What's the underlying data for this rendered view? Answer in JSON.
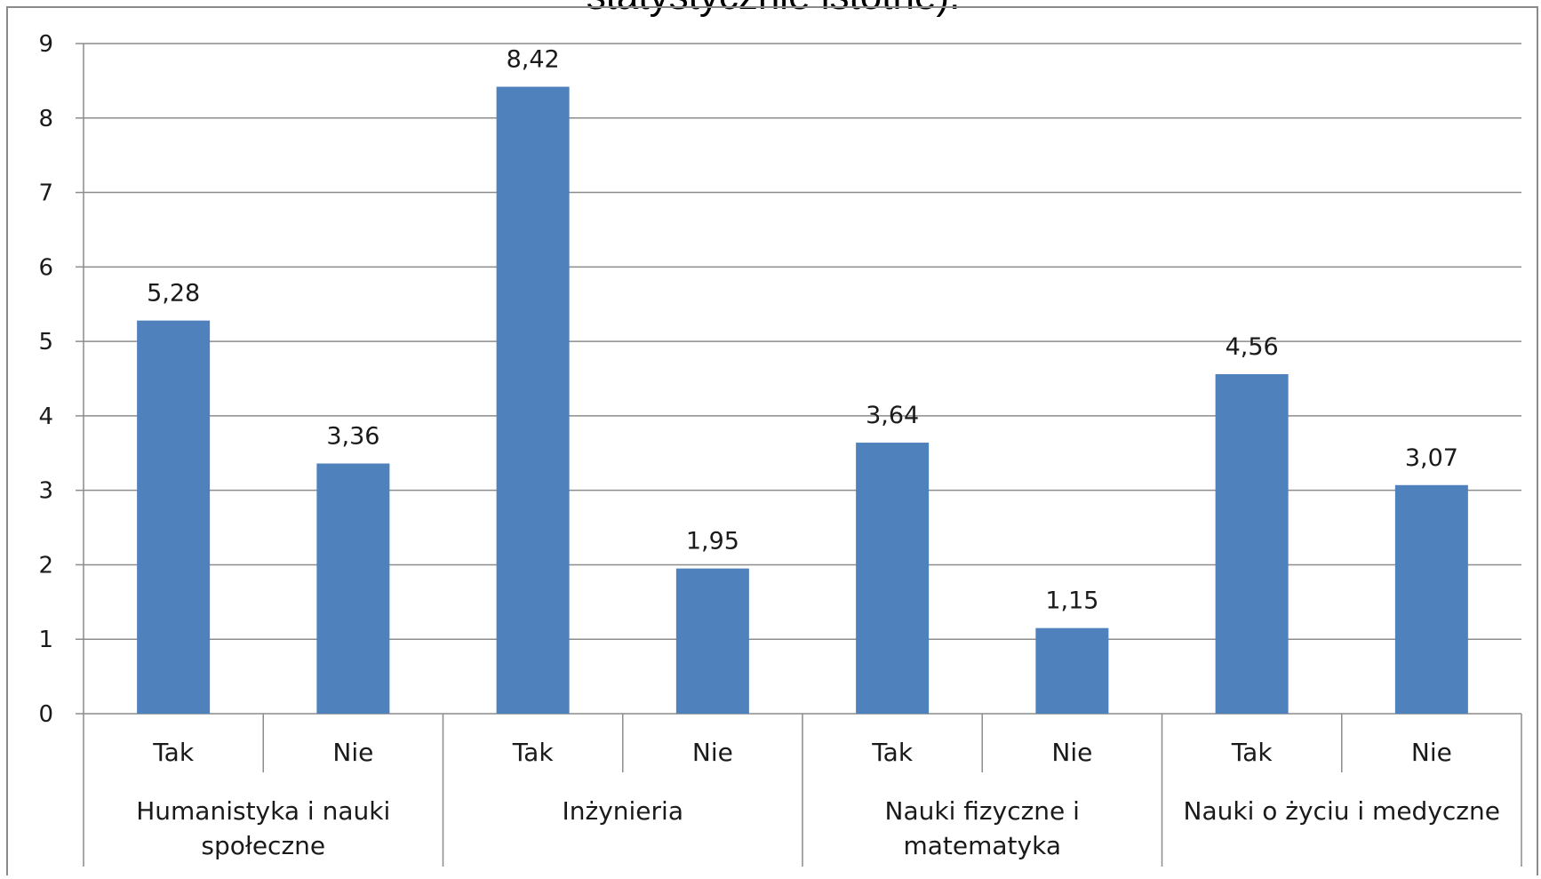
{
  "chart_data": {
    "type": "bar",
    "title": "statystycznie istotne).",
    "xlabel": "",
    "ylabel": "",
    "ylim": [
      0,
      9
    ],
    "yticks": [
      0,
      1,
      2,
      3,
      4,
      5,
      6,
      7,
      8,
      9
    ],
    "grid": true,
    "legend": "none",
    "bar_color": "#4F81BD",
    "groups": [
      {
        "label_lines": [
          "Humanistyka i nauki",
          "społeczne"
        ],
        "categories": [
          "Tak",
          "Nie"
        ],
        "values": [
          5.28,
          3.36
        ],
        "value_labels": [
          "5,28",
          "3,36"
        ]
      },
      {
        "label_lines": [
          "Inżynieria"
        ],
        "categories": [
          "Tak",
          "Nie"
        ],
        "values": [
          8.42,
          1.95
        ],
        "value_labels": [
          "8,42",
          "1,95"
        ]
      },
      {
        "label_lines": [
          "Nauki fizyczne i",
          "matematyka"
        ],
        "categories": [
          "Tak",
          "Nie"
        ],
        "values": [
          3.64,
          1.15
        ],
        "value_labels": [
          "3,64",
          "1,15"
        ]
      },
      {
        "label_lines": [
          "Nauki o życiu i medyczne"
        ],
        "categories": [
          "Tak",
          "Nie"
        ],
        "values": [
          4.56,
          3.07
        ],
        "value_labels": [
          "4,56",
          "3,07"
        ]
      }
    ]
  }
}
